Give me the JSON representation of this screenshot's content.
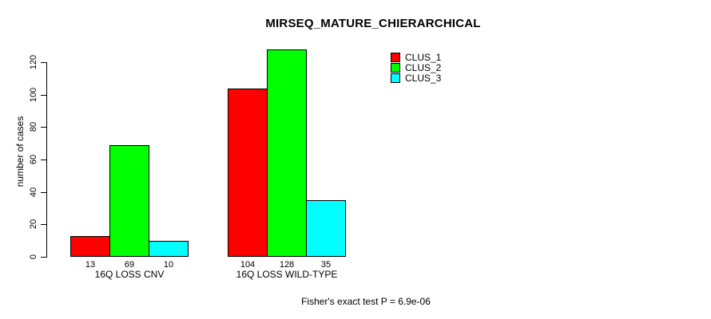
{
  "chart_data": {
    "type": "bar",
    "title": "MIRSEQ_MATURE_CHIERARCHICAL",
    "ylabel": "number of cases",
    "xlabel": "",
    "categories": [
      "16Q LOSS CNV",
      "16Q LOSS WILD-TYPE"
    ],
    "series": [
      {
        "name": "CLUS_1",
        "color": "#ff0000",
        "values": [
          13,
          104
        ]
      },
      {
        "name": "CLUS_2",
        "color": "#00ff00",
        "values": [
          69,
          128
        ]
      },
      {
        "name": "CLUS_3",
        "color": "#00ffff",
        "values": [
          10,
          35
        ]
      }
    ],
    "bar_value_labels": [
      [
        13,
        69,
        10
      ],
      [
        104,
        128,
        35
      ]
    ],
    "yticks": [
      0,
      20,
      40,
      60,
      80,
      100,
      120
    ],
    "ylim": [
      0,
      128
    ],
    "grid": false,
    "legend_position": "top-right",
    "annotation": "Fisher's exact test P = 6.9e-06"
  }
}
